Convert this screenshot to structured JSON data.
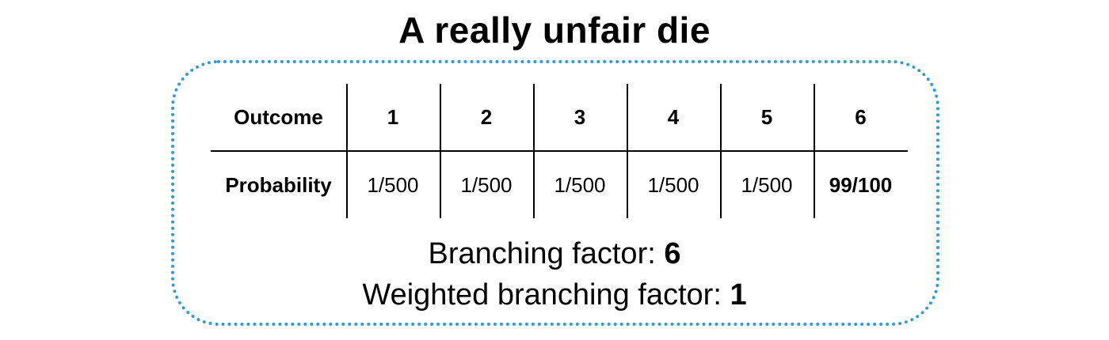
{
  "title": "A really unfair die",
  "colors": {
    "frame_border": "#2b9be0",
    "text": "#000000"
  },
  "table": {
    "row_labels": [
      "Outcome",
      "Probability"
    ],
    "outcomes": [
      "1",
      "2",
      "3",
      "4",
      "5",
      "6"
    ],
    "probabilities": [
      "1/500",
      "1/500",
      "1/500",
      "1/500",
      "1/500",
      "99/100"
    ]
  },
  "footer": {
    "branching_label": "Branching factor: ",
    "branching_value": "6",
    "weighted_label": "Weighted branching factor: ",
    "weighted_value": "1"
  }
}
